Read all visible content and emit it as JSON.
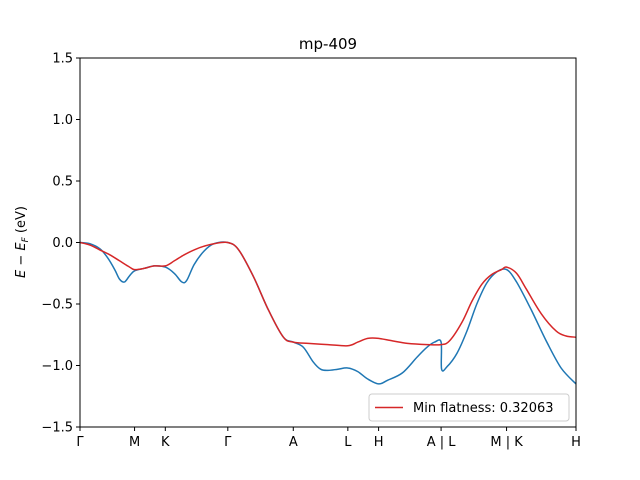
{
  "chart_data": {
    "type": "line",
    "title": "mp-409",
    "xlabel": "",
    "ylabel": "E − E_F (eV)",
    "ylabel_main": "E − E",
    "ylabel_sub": "F",
    "ylabel_unit": " (eV)",
    "ylim": [
      -1.5,
      1.5
    ],
    "yticks": [
      -1.5,
      -1.0,
      -0.5,
      0.0,
      0.5,
      1.0,
      1.5
    ],
    "ytick_labels": [
      "−1.5",
      "−1.0",
      "−0.5",
      "0.0",
      "0.5",
      "1.0",
      "1.5"
    ],
    "xlim": [
      0,
      10
    ],
    "xticks": [
      {
        "pos": 0.0,
        "label": "Γ"
      },
      {
        "pos": 1.1,
        "label": "M"
      },
      {
        "pos": 1.72,
        "label": "K"
      },
      {
        "pos": 2.98,
        "label": "Γ"
      },
      {
        "pos": 4.3,
        "label": "A"
      },
      {
        "pos": 5.4,
        "label": "L"
      },
      {
        "pos": 6.02,
        "label": "H"
      },
      {
        "pos": 7.28,
        "label": "A | L"
      },
      {
        "pos": 8.6,
        "label": "M | K"
      },
      {
        "pos": 10.0,
        "label": "H"
      }
    ],
    "grid": false,
    "legend": {
      "placement": "lower-right"
    },
    "series": [
      {
        "name": "",
        "color": "#1f77b4",
        "points": [
          [
            0.0,
            0.0
          ],
          [
            0.2,
            -0.01
          ],
          [
            0.4,
            -0.05
          ],
          [
            0.55,
            -0.12
          ],
          [
            0.7,
            -0.22
          ],
          [
            0.8,
            -0.3
          ],
          [
            0.9,
            -0.32
          ],
          [
            1.0,
            -0.27
          ],
          [
            1.1,
            -0.23
          ],
          [
            1.3,
            -0.21
          ],
          [
            1.5,
            -0.19
          ],
          [
            1.72,
            -0.2
          ],
          [
            1.9,
            -0.25
          ],
          [
            2.05,
            -0.32
          ],
          [
            2.15,
            -0.31
          ],
          [
            2.3,
            -0.18
          ],
          [
            2.5,
            -0.07
          ],
          [
            2.7,
            -0.01
          ],
          [
            2.98,
            0.0
          ],
          [
            3.2,
            -0.06
          ],
          [
            3.5,
            -0.28
          ],
          [
            3.8,
            -0.55
          ],
          [
            4.1,
            -0.77
          ],
          [
            4.3,
            -0.81
          ],
          [
            4.5,
            -0.85
          ],
          [
            4.7,
            -0.97
          ],
          [
            4.85,
            -1.03
          ],
          [
            5.0,
            -1.04
          ],
          [
            5.2,
            -1.03
          ],
          [
            5.4,
            -1.02
          ],
          [
            5.6,
            -1.05
          ],
          [
            5.8,
            -1.11
          ],
          [
            6.02,
            -1.15
          ],
          [
            6.2,
            -1.12
          ],
          [
            6.5,
            -1.06
          ],
          [
            6.8,
            -0.93
          ],
          [
            7.0,
            -0.85
          ],
          [
            7.15,
            -0.81
          ],
          [
            7.28,
            -0.81
          ],
          [
            7.29,
            -1.03
          ],
          [
            7.4,
            -1.01
          ],
          [
            7.6,
            -0.9
          ],
          [
            7.8,
            -0.72
          ],
          [
            8.0,
            -0.5
          ],
          [
            8.2,
            -0.33
          ],
          [
            8.4,
            -0.24
          ],
          [
            8.6,
            -0.22
          ],
          [
            8.8,
            -0.32
          ],
          [
            9.1,
            -0.55
          ],
          [
            9.4,
            -0.8
          ],
          [
            9.7,
            -1.02
          ],
          [
            10.0,
            -1.15
          ]
        ]
      },
      {
        "name": "Min flatness: 0.32063",
        "color": "#d62728",
        "points": [
          [
            0.0,
            0.0
          ],
          [
            0.2,
            -0.02
          ],
          [
            0.4,
            -0.06
          ],
          [
            0.6,
            -0.1
          ],
          [
            0.8,
            -0.15
          ],
          [
            1.0,
            -0.2
          ],
          [
            1.1,
            -0.22
          ],
          [
            1.3,
            -0.21
          ],
          [
            1.5,
            -0.19
          ],
          [
            1.72,
            -0.19
          ],
          [
            1.9,
            -0.15
          ],
          [
            2.1,
            -0.1
          ],
          [
            2.3,
            -0.06
          ],
          [
            2.5,
            -0.03
          ],
          [
            2.7,
            -0.01
          ],
          [
            2.98,
            0.0
          ],
          [
            3.2,
            -0.06
          ],
          [
            3.5,
            -0.28
          ],
          [
            3.8,
            -0.55
          ],
          [
            4.1,
            -0.77
          ],
          [
            4.3,
            -0.81
          ],
          [
            4.6,
            -0.82
          ],
          [
            5.0,
            -0.83
          ],
          [
            5.4,
            -0.84
          ],
          [
            5.6,
            -0.81
          ],
          [
            5.8,
            -0.78
          ],
          [
            6.02,
            -0.78
          ],
          [
            6.3,
            -0.8
          ],
          [
            6.6,
            -0.82
          ],
          [
            7.0,
            -0.83
          ],
          [
            7.28,
            -0.83
          ],
          [
            7.45,
            -0.8
          ],
          [
            7.7,
            -0.65
          ],
          [
            7.9,
            -0.48
          ],
          [
            8.1,
            -0.34
          ],
          [
            8.3,
            -0.26
          ],
          [
            8.5,
            -0.22
          ],
          [
            8.6,
            -0.2
          ],
          [
            8.8,
            -0.25
          ],
          [
            9.0,
            -0.38
          ],
          [
            9.3,
            -0.58
          ],
          [
            9.6,
            -0.72
          ],
          [
            9.8,
            -0.76
          ],
          [
            10.0,
            -0.77
          ]
        ]
      }
    ]
  }
}
